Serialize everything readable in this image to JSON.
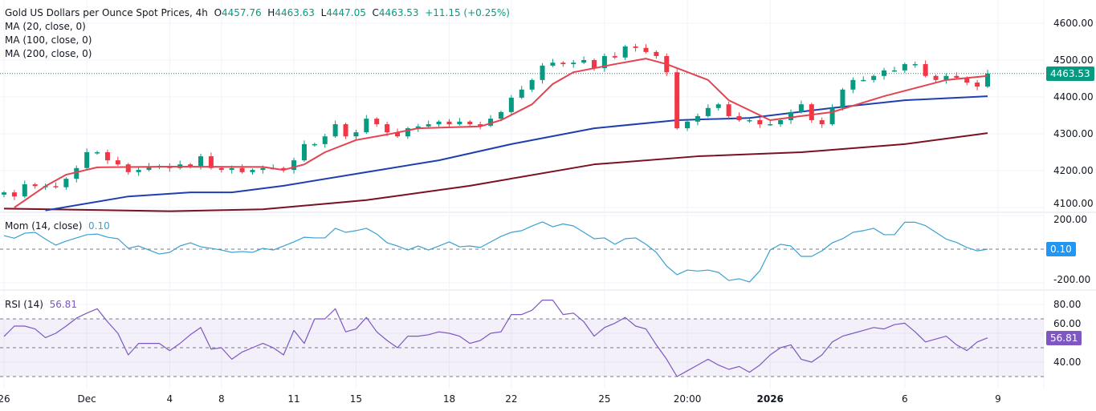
{
  "header": {
    "symbol": "Gold US Dollars per Ounce Spot Prices, 4h",
    "open_label": "O",
    "open": "4457.76",
    "high_label": "H",
    "high": "4463.63",
    "low_label": "L",
    "low": "4447.05",
    "close_label": "C",
    "close": "4463.53",
    "change": "+11.15 (+0.25%)"
  },
  "indicators": {
    "ma20": "MA (20, close, 0)",
    "ma100": "MA (100, close, 0)",
    "ma200": "MA (200, close, 0)",
    "mom_label": "Mom (14, close)",
    "mom_value": "0.10",
    "rsi_label": "RSI (14)",
    "rsi_value": "56.81"
  },
  "colors": {
    "up": "#089981",
    "down": "#f23645",
    "ma20": "#e5434f",
    "ma100": "#1f3fb0",
    "ma200": "#7a1020",
    "mom": "#3aa1d1",
    "mom_badge": "#2196f3",
    "rsi": "#7e57c2",
    "last_price": "#089981"
  },
  "chart_data": [
    {
      "type": "candlestick",
      "title": "Gold US Dollars per Ounce Spot Prices, 4h",
      "ylim": [
        4090,
        4620
      ],
      "y_ticks": [
        "4600.00",
        "4500.00",
        "4400.00",
        "4300.00",
        "4200.00",
        "4100.00"
      ],
      "last_price": "4463.53",
      "first_open": 4135,
      "closes": [
        4141,
        4130,
        4163,
        4158,
        4158,
        4155,
        4178,
        4207,
        4250,
        4250,
        4228,
        4217,
        4196,
        4202,
        4211,
        4213,
        4207,
        4217,
        4213,
        4239,
        4207,
        4202,
        4207,
        4196,
        4202,
        4207,
        4207,
        4202,
        4228,
        4272,
        4272,
        4293,
        4326,
        4293,
        4304,
        4341,
        4326,
        4304,
        4293,
        4315,
        4320,
        4326,
        4333,
        4326,
        4333,
        4326,
        4322,
        4341,
        4359,
        4398,
        4420,
        4446,
        4485,
        4493,
        4489,
        4493,
        4500,
        4478,
        4511,
        4507,
        4537,
        4533,
        4522,
        4511,
        4467,
        4315,
        4333,
        4348,
        4370,
        4380,
        4348,
        4337,
        4337,
        4326,
        4326,
        4337,
        4359,
        4380,
        4337,
        4326,
        4370,
        4420,
        4446,
        4446,
        4457,
        4472,
        4472,
        4489,
        4489,
        4457,
        4446,
        4457,
        4452,
        4439,
        4428,
        4463.53
      ],
      "series": [
        {
          "name": "MA (20, close, 0)",
          "points": [
            [
              1,
              4100
            ],
            [
              4,
              4158
            ],
            [
              6,
              4189
            ],
            [
              9,
              4209
            ],
            [
              16,
              4211
            ],
            [
              25,
              4210
            ],
            [
              27,
              4202
            ],
            [
              29,
              4217
            ],
            [
              31,
              4250
            ],
            [
              34,
              4283
            ],
            [
              37,
              4298
            ],
            [
              40,
              4315
            ],
            [
              46,
              4320
            ],
            [
              48,
              4337
            ],
            [
              51,
              4380
            ],
            [
              53,
              4435
            ],
            [
              55,
              4467
            ],
            [
              59,
              4489
            ],
            [
              62,
              4504
            ],
            [
              64,
              4489
            ],
            [
              68,
              4446
            ],
            [
              70,
              4391
            ],
            [
              74,
              4337
            ],
            [
              77,
              4348
            ],
            [
              80,
              4359
            ],
            [
              85,
              4402
            ],
            [
              88,
              4424
            ],
            [
              91,
              4446
            ],
            [
              95,
              4457
            ]
          ]
        },
        {
          "name": "MA (100, close, 0)",
          "points": [
            [
              4,
              4092
            ],
            [
              12,
              4130
            ],
            [
              18,
              4141
            ],
            [
              22,
              4141
            ],
            [
              27,
              4159
            ],
            [
              35,
              4196
            ],
            [
              42,
              4228
            ],
            [
              49,
              4272
            ],
            [
              57,
              4315
            ],
            [
              65,
              4337
            ],
            [
              72,
              4343
            ],
            [
              80,
              4370
            ],
            [
              87,
              4391
            ],
            [
              95,
              4402
            ]
          ]
        },
        {
          "name": "MA (200, close, 0)",
          "points": [
            [
              0,
              4097
            ],
            [
              16,
              4090
            ],
            [
              25,
              4095
            ],
            [
              35,
              4120
            ],
            [
              45,
              4159
            ],
            [
              57,
              4217
            ],
            [
              67,
              4239
            ],
            [
              77,
              4250
            ],
            [
              87,
              4272
            ],
            [
              95,
              4302
            ]
          ]
        }
      ],
      "x_ticks": [
        {
          "label": "26",
          "index": 0
        },
        {
          "label": "Dec",
          "index": 8
        },
        {
          "label": "4",
          "index": 16
        },
        {
          "label": "8",
          "index": 21
        },
        {
          "label": "11",
          "index": 28
        },
        {
          "label": "15",
          "index": 34
        },
        {
          "label": "18",
          "index": 43
        },
        {
          "label": "22",
          "index": 49
        },
        {
          "label": "25",
          "index": 58
        },
        {
          "label": "20:00",
          "index": 66
        },
        {
          "label": "2026",
          "index": 74,
          "bold": true
        },
        {
          "label": "6",
          "index": 87
        },
        {
          "label": "9",
          "index": 96
        }
      ]
    },
    {
      "type": "line",
      "title": "Mom (14, close)",
      "ylim": [
        -220,
        220
      ],
      "y_ticks": [
        "200.00",
        "-200.00"
      ],
      "zero_line": 0,
      "last_value": "0.10",
      "values": [
        80,
        65,
        95,
        100,
        60,
        24,
        48,
        67,
        86,
        90,
        71,
        62,
        5,
        19,
        -5,
        -29,
        -19,
        19,
        38,
        14,
        5,
        -5,
        -19,
        -14,
        -19,
        5,
        -5,
        19,
        43,
        71,
        67,
        67,
        124,
        100,
        110,
        124,
        90,
        38,
        19,
        -5,
        19,
        -5,
        19,
        43,
        14,
        19,
        10,
        43,
        76,
        100,
        110,
        138,
        162,
        133,
        150,
        138,
        100,
        62,
        67,
        29,
        62,
        67,
        29,
        -19,
        -100,
        -152,
        -124,
        -130,
        -124,
        -138,
        -186,
        -176,
        -195,
        -129,
        -5,
        29,
        19,
        -43,
        -43,
        -10,
        38,
        62,
        100,
        110,
        124,
        86,
        86,
        160,
        160,
        140,
        100,
        60,
        40,
        10,
        -10,
        0.1
      ]
    },
    {
      "type": "line",
      "title": "RSI (14)",
      "ylim": [
        24,
        88
      ],
      "y_ticks": [
        "80.00",
        "60.00",
        "40.00"
      ],
      "bands": [
        70,
        50,
        30
      ],
      "last_value": "56.81",
      "values": [
        57.8,
        65,
        65,
        63,
        57,
        60,
        65,
        70.5,
        74,
        77,
        68,
        60,
        45,
        53,
        53,
        53,
        48,
        53,
        59,
        64,
        49,
        50,
        42,
        47,
        50,
        53,
        50,
        45,
        62,
        53,
        70,
        70,
        77,
        61,
        63,
        71,
        61,
        55,
        50,
        58,
        58,
        59,
        61,
        60,
        58,
        53,
        55,
        60,
        61,
        73,
        73,
        76,
        83,
        83,
        73,
        74,
        68,
        58,
        64,
        67,
        71,
        65,
        63,
        52,
        42,
        30,
        34,
        38,
        42,
        38,
        35,
        37,
        33,
        38,
        45,
        50,
        52,
        42,
        40,
        45,
        54,
        58,
        60,
        62,
        64,
        63,
        66,
        67,
        61,
        54,
        56,
        58,
        52,
        48,
        54,
        56.81
      ]
    }
  ]
}
